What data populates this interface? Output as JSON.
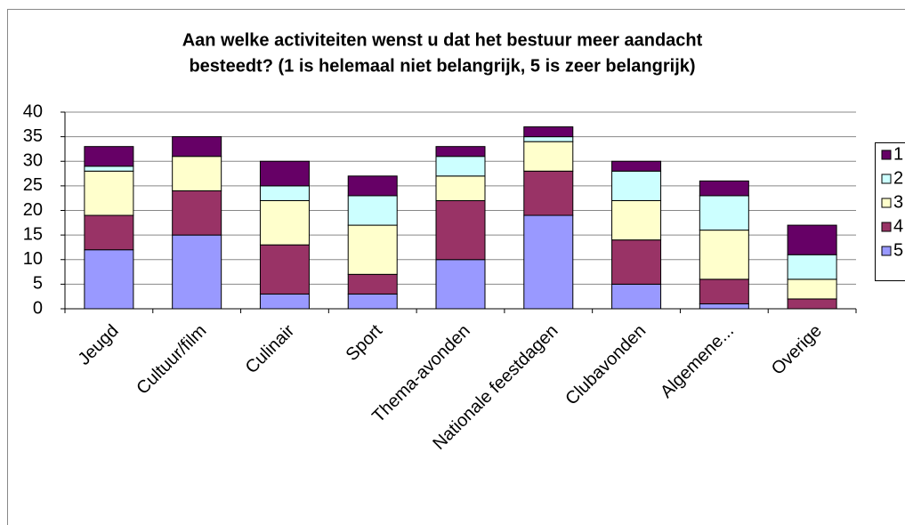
{
  "chart_data": {
    "type": "stacked_bar",
    "title": [
      "Aan welke activiteiten wenst u dat het bestuur meer aandacht",
      "besteedt? (1 is helemaal niet belangrijk, 5 is zeer belangrijk)"
    ],
    "categories": [
      "Jeugd",
      "Cultuur/film",
      "Culinair",
      "Sport",
      "Thema-avonden",
      "Nationale feestdagen",
      "Clubavonden",
      "Algemene...",
      "Overige"
    ],
    "series": [
      {
        "name": "5",
        "color": "#9999ff",
        "values": [
          12,
          15,
          3,
          3,
          10,
          19,
          5,
          1,
          0
        ]
      },
      {
        "name": "4",
        "color": "#993366",
        "values": [
          7,
          9,
          10,
          4,
          12,
          9,
          9,
          5,
          2
        ]
      },
      {
        "name": "3",
        "color": "#ffffcc",
        "values": [
          9,
          7,
          9,
          10,
          5,
          6,
          8,
          10,
          4
        ]
      },
      {
        "name": "2",
        "color": "#ccffff",
        "values": [
          1,
          0,
          3,
          6,
          4,
          1,
          6,
          7,
          5
        ]
      },
      {
        "name": "1",
        "color": "#660066",
        "values": [
          4,
          4,
          5,
          4,
          2,
          2,
          2,
          3,
          6
        ]
      }
    ],
    "ylim": [
      0,
      40
    ],
    "yticks": [
      0,
      5,
      10,
      15,
      20,
      25,
      30,
      35,
      40
    ],
    "grid": true,
    "legend": "right"
  }
}
